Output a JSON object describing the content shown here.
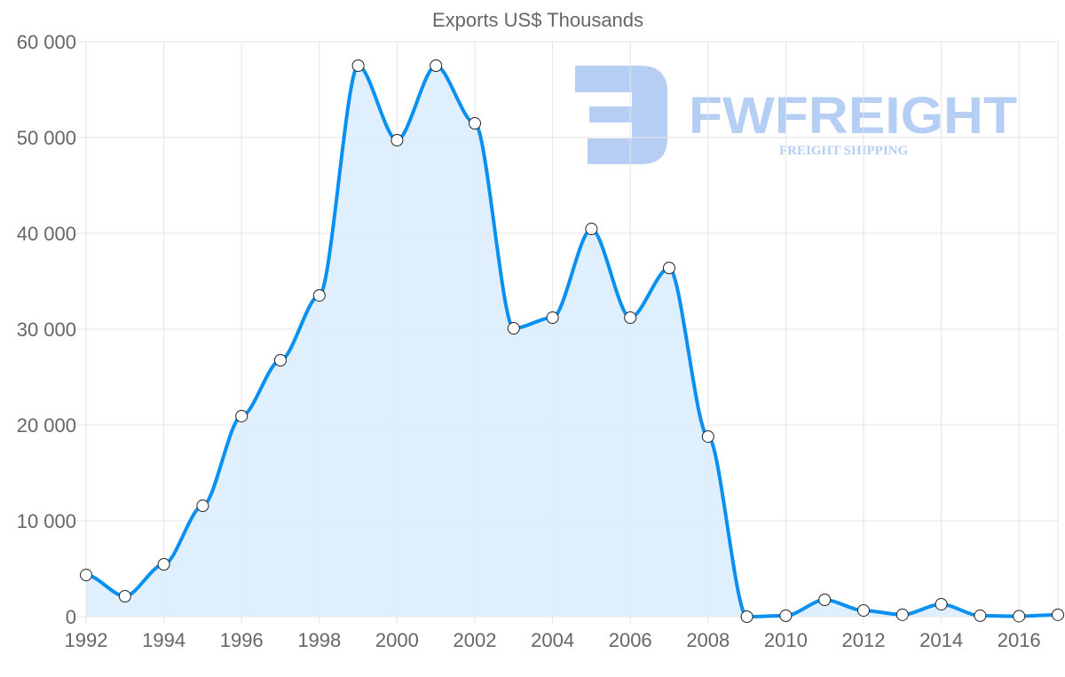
{
  "chart_data": {
    "type": "area",
    "title": "Exports US$ Thousands",
    "xlabel": "",
    "ylabel": "",
    "x": [
      1992,
      1993,
      1994,
      1995,
      1996,
      1997,
      1998,
      1999,
      2000,
      2001,
      2002,
      2003,
      2004,
      2005,
      2006,
      2007,
      2008,
      2009,
      2010,
      2011,
      2012,
      2013,
      2014,
      2015,
      2016,
      2017
    ],
    "values": [
      4350,
      2130,
      5460,
      11570,
      20930,
      26760,
      33520,
      57500,
      49720,
      57500,
      51480,
      30090,
      31200,
      40460,
      31200,
      36390,
      18800,
      0,
      100,
      1760,
      650,
      200,
      1300,
      100,
      50,
      200
    ],
    "x_tick_labels": [
      "1992",
      "1994",
      "1996",
      "1998",
      "2000",
      "2002",
      "2004",
      "2006",
      "2008",
      "2010",
      "2012",
      "2014",
      "2016"
    ],
    "y_tick_labels": [
      "0",
      "10 000",
      "20 000",
      "30 000",
      "40 000",
      "50 000",
      "60 000"
    ],
    "ylim": [
      0,
      60000
    ],
    "xlim": [
      1992,
      2017
    ],
    "grid": true,
    "legend": "none",
    "line_color": "#0a90f0",
    "fill_color": "#d9ecfd"
  },
  "watermark": {
    "name": "FWFREIGHT",
    "tagline": "FREIGHT SHIPPING",
    "color": "#a9c6f2"
  }
}
